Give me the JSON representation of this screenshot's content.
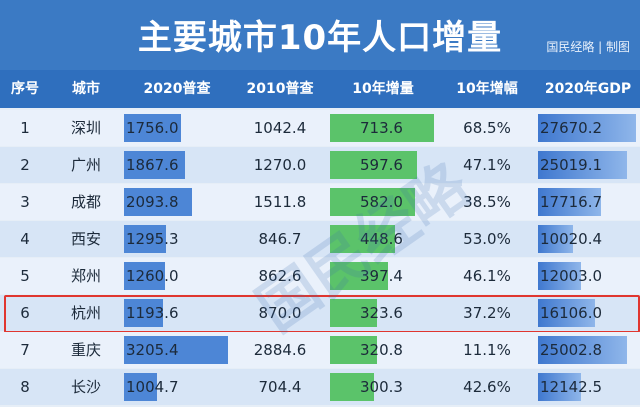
{
  "header": {
    "title": "主要城市10年人口增量",
    "source": "国民经略 | 制图"
  },
  "table": {
    "columns": [
      "序号",
      "城市",
      "2020普查",
      "2010普查",
      "10年增量",
      "10年增幅",
      "2020年GDP"
    ],
    "rows": [
      {
        "rank": "1",
        "city": "深圳",
        "pop2020": "1756.0",
        "pop2010": "1042.4",
        "increase": "713.6",
        "growth": "68.5%",
        "gdp2020": "27670.2"
      },
      {
        "rank": "2",
        "city": "广州",
        "pop2020": "1867.6",
        "pop2010": "1270.0",
        "increase": "597.6",
        "growth": "47.1%",
        "gdp2020": "25019.1"
      },
      {
        "rank": "3",
        "city": "成都",
        "pop2020": "2093.8",
        "pop2010": "1511.8",
        "increase": "582.0",
        "growth": "38.5%",
        "gdp2020": "17716.7"
      },
      {
        "rank": "4",
        "city": "西安",
        "pop2020": "1295.3",
        "pop2010": "846.7",
        "increase": "448.6",
        "growth": "53.0%",
        "gdp2020": "10020.4"
      },
      {
        "rank": "5",
        "city": "郑州",
        "pop2020": "1260.0",
        "pop2010": "862.6",
        "increase": "397.4",
        "growth": "46.1%",
        "gdp2020": "12003.0"
      },
      {
        "rank": "6",
        "city": "杭州",
        "pop2020": "1193.6",
        "pop2010": "870.0",
        "increase": "323.6",
        "growth": "37.2%",
        "gdp2020": "16106.0"
      },
      {
        "rank": "7",
        "city": "重庆",
        "pop2020": "3205.4",
        "pop2010": "2884.6",
        "increase": "320.8",
        "growth": "11.1%",
        "gdp2020": "25002.8"
      },
      {
        "rank": "8",
        "city": "长沙",
        "pop2020": "1004.7",
        "pop2010": "704.4",
        "increase": "300.3",
        "growth": "42.6%",
        "gdp2020": "12142.5"
      }
    ],
    "highlighted_rank": "6"
  },
  "watermark": "国民经略",
  "colors": {
    "title_bg": "#3b7ac4",
    "header_bg": "#2f6fbe",
    "pop_bar": "#4d86d6",
    "increase_bar": "#5bc36a",
    "highlight_border": "#e0362f"
  }
}
